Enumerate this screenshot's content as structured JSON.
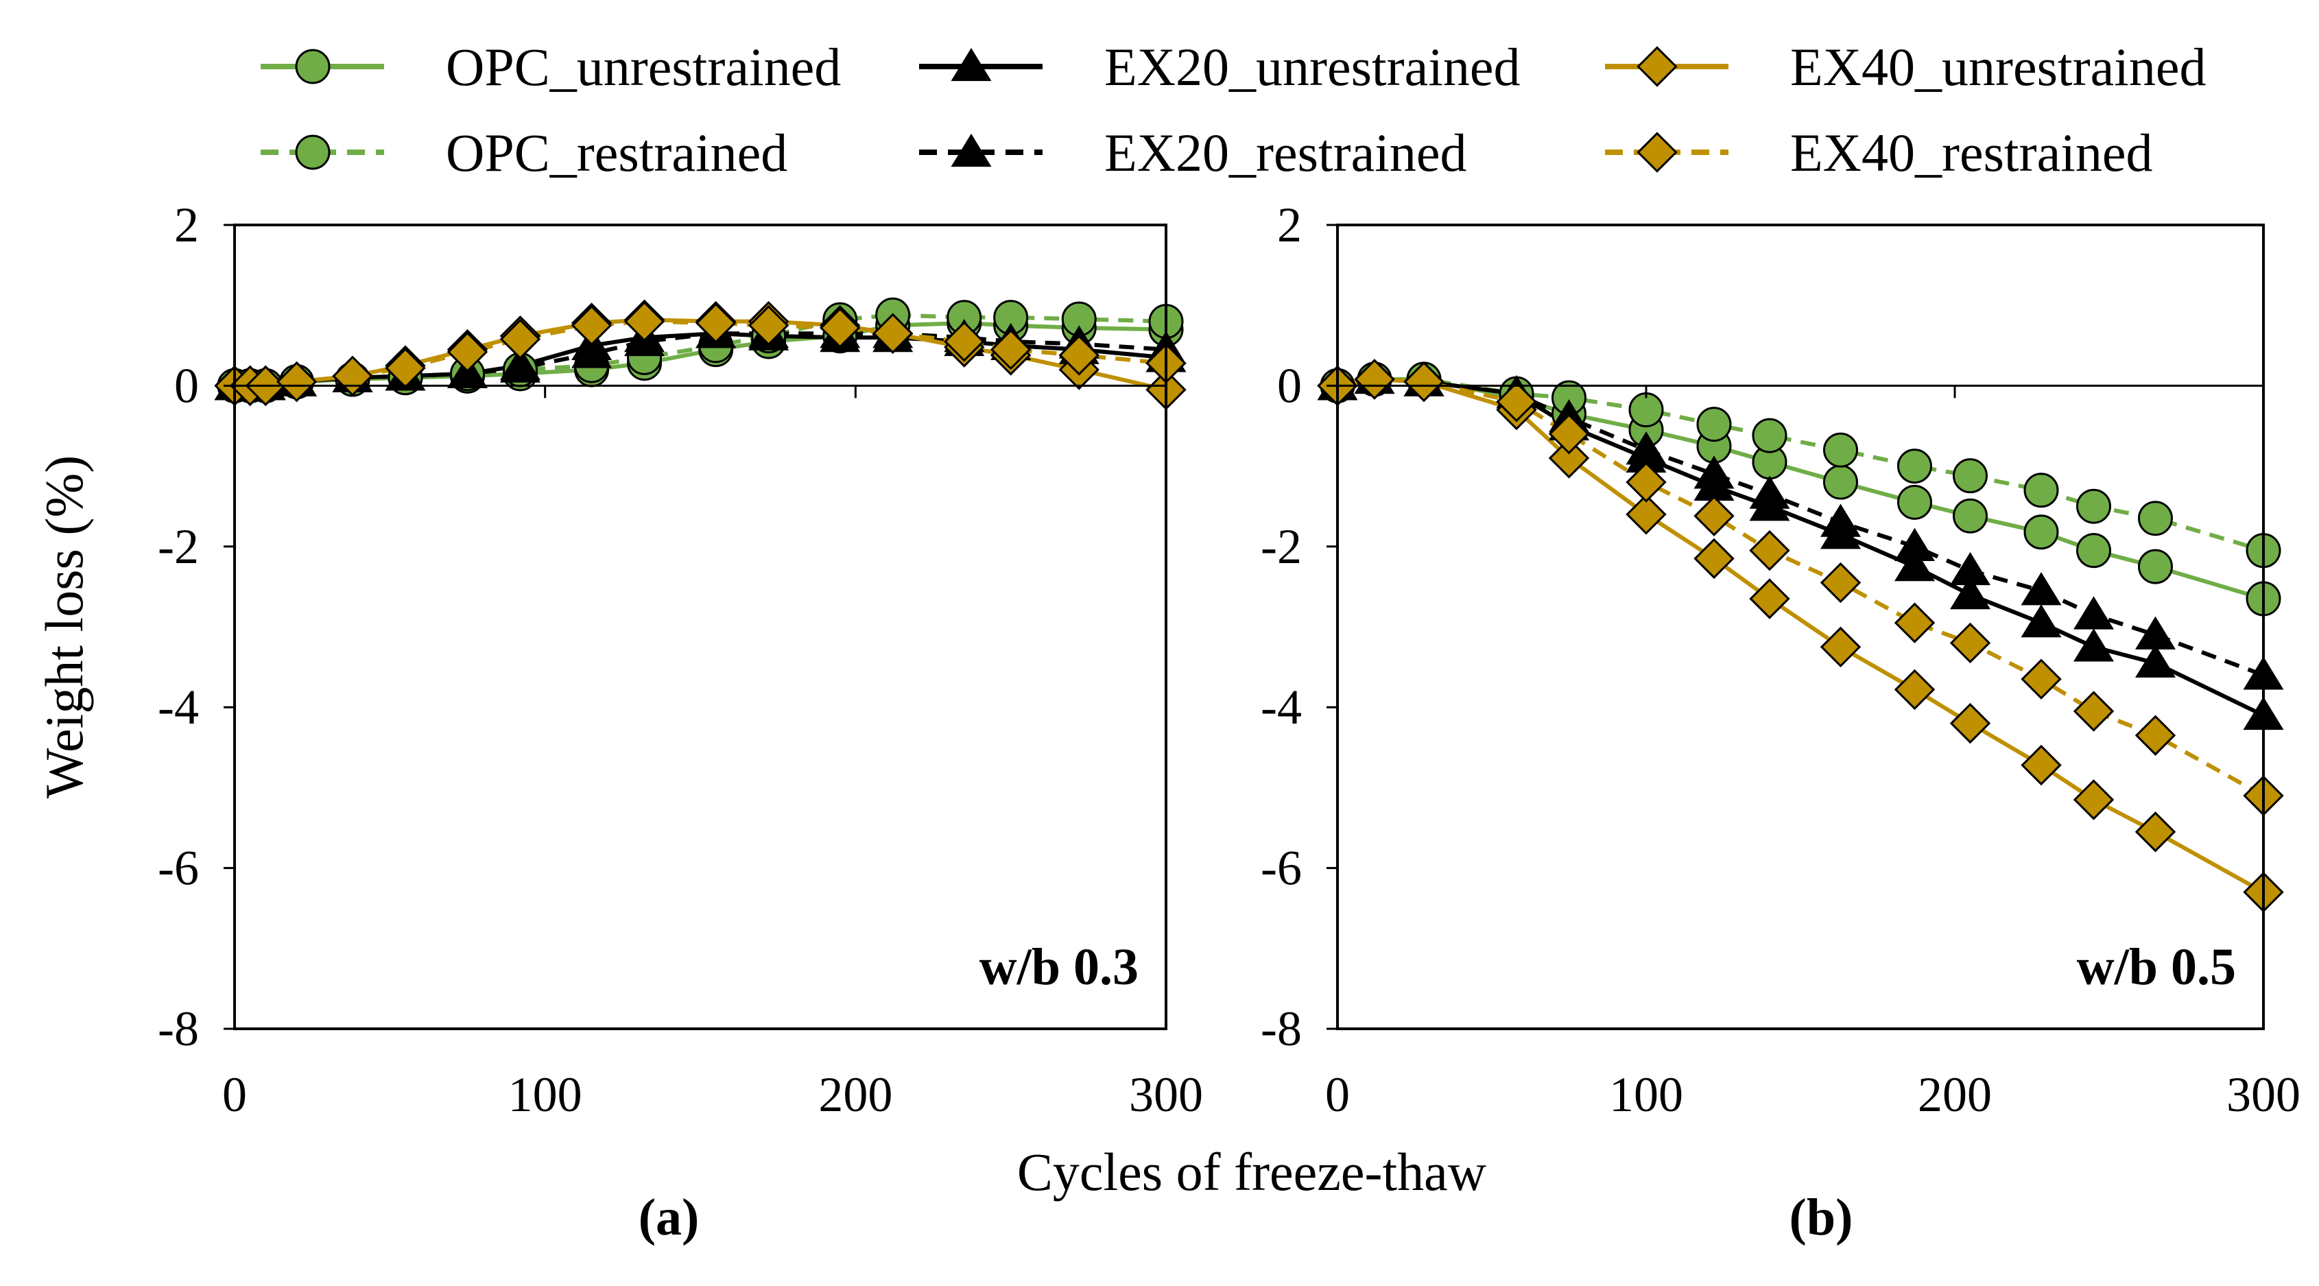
{
  "figure": {
    "xlabel": "Cycles of freeze-thaw",
    "ylabel": "Weight loss (%)"
  },
  "legend": [
    {
      "key": "OPC_unrestrained",
      "label": "OPC_unrestrained"
    },
    {
      "key": "EX20_unrestrained",
      "label": "EX20_unrestrained"
    },
    {
      "key": "EX40_unrestrained",
      "label": "EX40_unrestrained"
    },
    {
      "key": "OPC_restrained",
      "label": "OPC_restrained"
    },
    {
      "key": "EX20_restrained",
      "label": "EX20_restrained"
    },
    {
      "key": "EX40_restrained",
      "label": "EX40_restrained"
    }
  ],
  "styles": {
    "OPC_unrestrained": {
      "color": "#70AD47",
      "fill": "#70AD47",
      "marker": "circle",
      "dash": false
    },
    "OPC_restrained": {
      "color": "#70AD47",
      "fill": "#70AD47",
      "marker": "circle",
      "dash": true
    },
    "EX20_unrestrained": {
      "color": "#000000",
      "fill": "#000000",
      "marker": "triangle",
      "dash": false
    },
    "EX20_restrained": {
      "color": "#000000",
      "fill": "#000000",
      "marker": "triangle",
      "dash": true
    },
    "EX40_unrestrained": {
      "color": "#BF9000",
      "fill": "#BF9000",
      "marker": "diamond",
      "dash": false
    },
    "EX40_restrained": {
      "color": "#BF9000",
      "fill": "#BF9000",
      "marker": "diamond",
      "dash": true
    }
  },
  "chart_data": [
    {
      "type": "line",
      "panel_label": "(a)",
      "annotation": "w/b 0.3",
      "xlim": [
        0,
        300
      ],
      "ylim": [
        -8,
        2
      ],
      "xticks": [
        0,
        100,
        200,
        300
      ],
      "yticks": [
        -8,
        -6,
        -4,
        -2,
        0,
        2
      ],
      "xtick_labels": [
        "0",
        "100",
        "200",
        "300"
      ],
      "ytick_labels": [
        "-8",
        "-6",
        "-4",
        "-2",
        "0",
        "2"
      ],
      "series": [
        {
          "name": "OPC_unrestrained",
          "x": [
            0,
            5,
            10,
            20,
            38,
            55,
            75,
            92,
            115,
            132,
            155,
            172,
            195,
            212,
            235,
            250,
            272,
            300
          ],
          "y": [
            0,
            0,
            0,
            0.05,
            0.08,
            0.1,
            0.12,
            0.15,
            0.2,
            0.28,
            0.45,
            0.55,
            0.62,
            0.75,
            0.78,
            0.75,
            0.72,
            0.7
          ]
        },
        {
          "name": "OPC_restrained",
          "x": [
            0,
            5,
            10,
            20,
            38,
            55,
            75,
            92,
            115,
            132,
            155,
            172,
            195,
            212,
            235,
            250,
            272,
            300
          ],
          "y": [
            0,
            0,
            0,
            0.05,
            0.08,
            0.1,
            0.15,
            0.2,
            0.25,
            0.35,
            0.5,
            0.62,
            0.82,
            0.88,
            0.85,
            0.85,
            0.83,
            0.8
          ]
        },
        {
          "name": "EX20_unrestrained",
          "x": [
            0,
            5,
            10,
            20,
            38,
            55,
            75,
            92,
            115,
            132,
            155,
            172,
            195,
            212,
            235,
            250,
            272,
            300
          ],
          "y": [
            0,
            0,
            0,
            0.05,
            0.1,
            0.12,
            0.15,
            0.25,
            0.5,
            0.6,
            0.65,
            0.62,
            0.6,
            0.6,
            0.55,
            0.5,
            0.45,
            0.35
          ]
        },
        {
          "name": "EX20_restrained",
          "x": [
            0,
            5,
            10,
            20,
            38,
            55,
            75,
            92,
            115,
            132,
            155,
            172,
            195,
            212,
            235,
            250,
            272,
            300
          ],
          "y": [
            0,
            0,
            0,
            0.05,
            0.1,
            0.12,
            0.15,
            0.22,
            0.4,
            0.55,
            0.65,
            0.65,
            0.65,
            0.65,
            0.6,
            0.55,
            0.52,
            0.45
          ]
        },
        {
          "name": "EX40_unrestrained",
          "x": [
            0,
            5,
            10,
            20,
            38,
            55,
            75,
            92,
            115,
            132,
            155,
            172,
            195,
            212,
            235,
            250,
            272,
            300
          ],
          "y": [
            0,
            0,
            0,
            0.05,
            0.12,
            0.25,
            0.45,
            0.62,
            0.78,
            0.82,
            0.8,
            0.8,
            0.75,
            0.65,
            0.48,
            0.38,
            0.2,
            -0.05
          ]
        },
        {
          "name": "EX40_restrained",
          "x": [
            0,
            5,
            10,
            20,
            38,
            55,
            75,
            92,
            115,
            132,
            155,
            172,
            195,
            212,
            235,
            250,
            272,
            300
          ],
          "y": [
            0,
            0,
            0,
            0.05,
            0.12,
            0.22,
            0.42,
            0.58,
            0.75,
            0.8,
            0.78,
            0.75,
            0.72,
            0.65,
            0.55,
            0.45,
            0.38,
            0.28
          ]
        }
      ]
    },
    {
      "type": "line",
      "panel_label": "(b)",
      "annotation": "w/b 0.5",
      "xlim": [
        0,
        300
      ],
      "ylim": [
        -8,
        2
      ],
      "xticks": [
        0,
        100,
        200,
        300
      ],
      "yticks": [
        -8,
        -6,
        -4,
        -2,
        0,
        2
      ],
      "xtick_labels": [
        "0",
        "100",
        "200",
        "300"
      ],
      "ytick_labels": [
        "-8",
        "-6",
        "-4",
        "-2",
        "0",
        "2"
      ],
      "series": [
        {
          "name": "OPC_unrestrained",
          "x": [
            0,
            12,
            28,
            58,
            75,
            100,
            122,
            140,
            163,
            187,
            205,
            228,
            245,
            265,
            300
          ],
          "y": [
            0,
            0.08,
            0.08,
            -0.15,
            -0.35,
            -0.55,
            -0.75,
            -0.95,
            -1.2,
            -1.45,
            -1.62,
            -1.82,
            -2.05,
            -2.25,
            -2.65
          ]
        },
        {
          "name": "OPC_restrained",
          "x": [
            0,
            12,
            28,
            58,
            75,
            100,
            122,
            140,
            163,
            187,
            205,
            228,
            245,
            265,
            300
          ],
          "y": [
            0,
            0.08,
            0.08,
            -0.1,
            -0.15,
            -0.3,
            -0.48,
            -0.62,
            -0.8,
            -1.0,
            -1.12,
            -1.3,
            -1.5,
            -1.65,
            -2.05
          ]
        },
        {
          "name": "EX20_unrestrained",
          "x": [
            0,
            12,
            28,
            58,
            75,
            100,
            122,
            140,
            163,
            187,
            205,
            228,
            245,
            265,
            300
          ],
          "y": [
            0,
            0.08,
            0.05,
            -0.1,
            -0.5,
            -0.9,
            -1.25,
            -1.5,
            -1.85,
            -2.25,
            -2.6,
            -2.95,
            -3.25,
            -3.45,
            -4.1
          ]
        },
        {
          "name": "EX20_restrained",
          "x": [
            0,
            12,
            28,
            58,
            75,
            100,
            122,
            140,
            163,
            187,
            205,
            228,
            245,
            265,
            300
          ],
          "y": [
            0,
            0.08,
            0.05,
            -0.1,
            -0.4,
            -0.8,
            -1.1,
            -1.35,
            -1.7,
            -2.0,
            -2.3,
            -2.55,
            -2.85,
            -3.1,
            -3.6
          ]
        },
        {
          "name": "EX40_unrestrained",
          "x": [
            0,
            12,
            28,
            58,
            75,
            100,
            122,
            140,
            163,
            187,
            205,
            228,
            245,
            265,
            300
          ],
          "y": [
            0,
            0.08,
            0.05,
            -0.3,
            -0.9,
            -1.6,
            -2.15,
            -2.65,
            -3.25,
            -3.78,
            -4.2,
            -4.72,
            -5.15,
            -5.55,
            -6.3
          ]
        },
        {
          "name": "EX40_restrained",
          "x": [
            0,
            12,
            28,
            58,
            75,
            100,
            122,
            140,
            163,
            187,
            205,
            228,
            245,
            265,
            300
          ],
          "y": [
            0,
            0.08,
            0.05,
            -0.2,
            -0.6,
            -1.2,
            -1.62,
            -2.05,
            -2.45,
            -2.95,
            -3.2,
            -3.65,
            -4.05,
            -4.35,
            -5.1
          ]
        }
      ]
    }
  ]
}
